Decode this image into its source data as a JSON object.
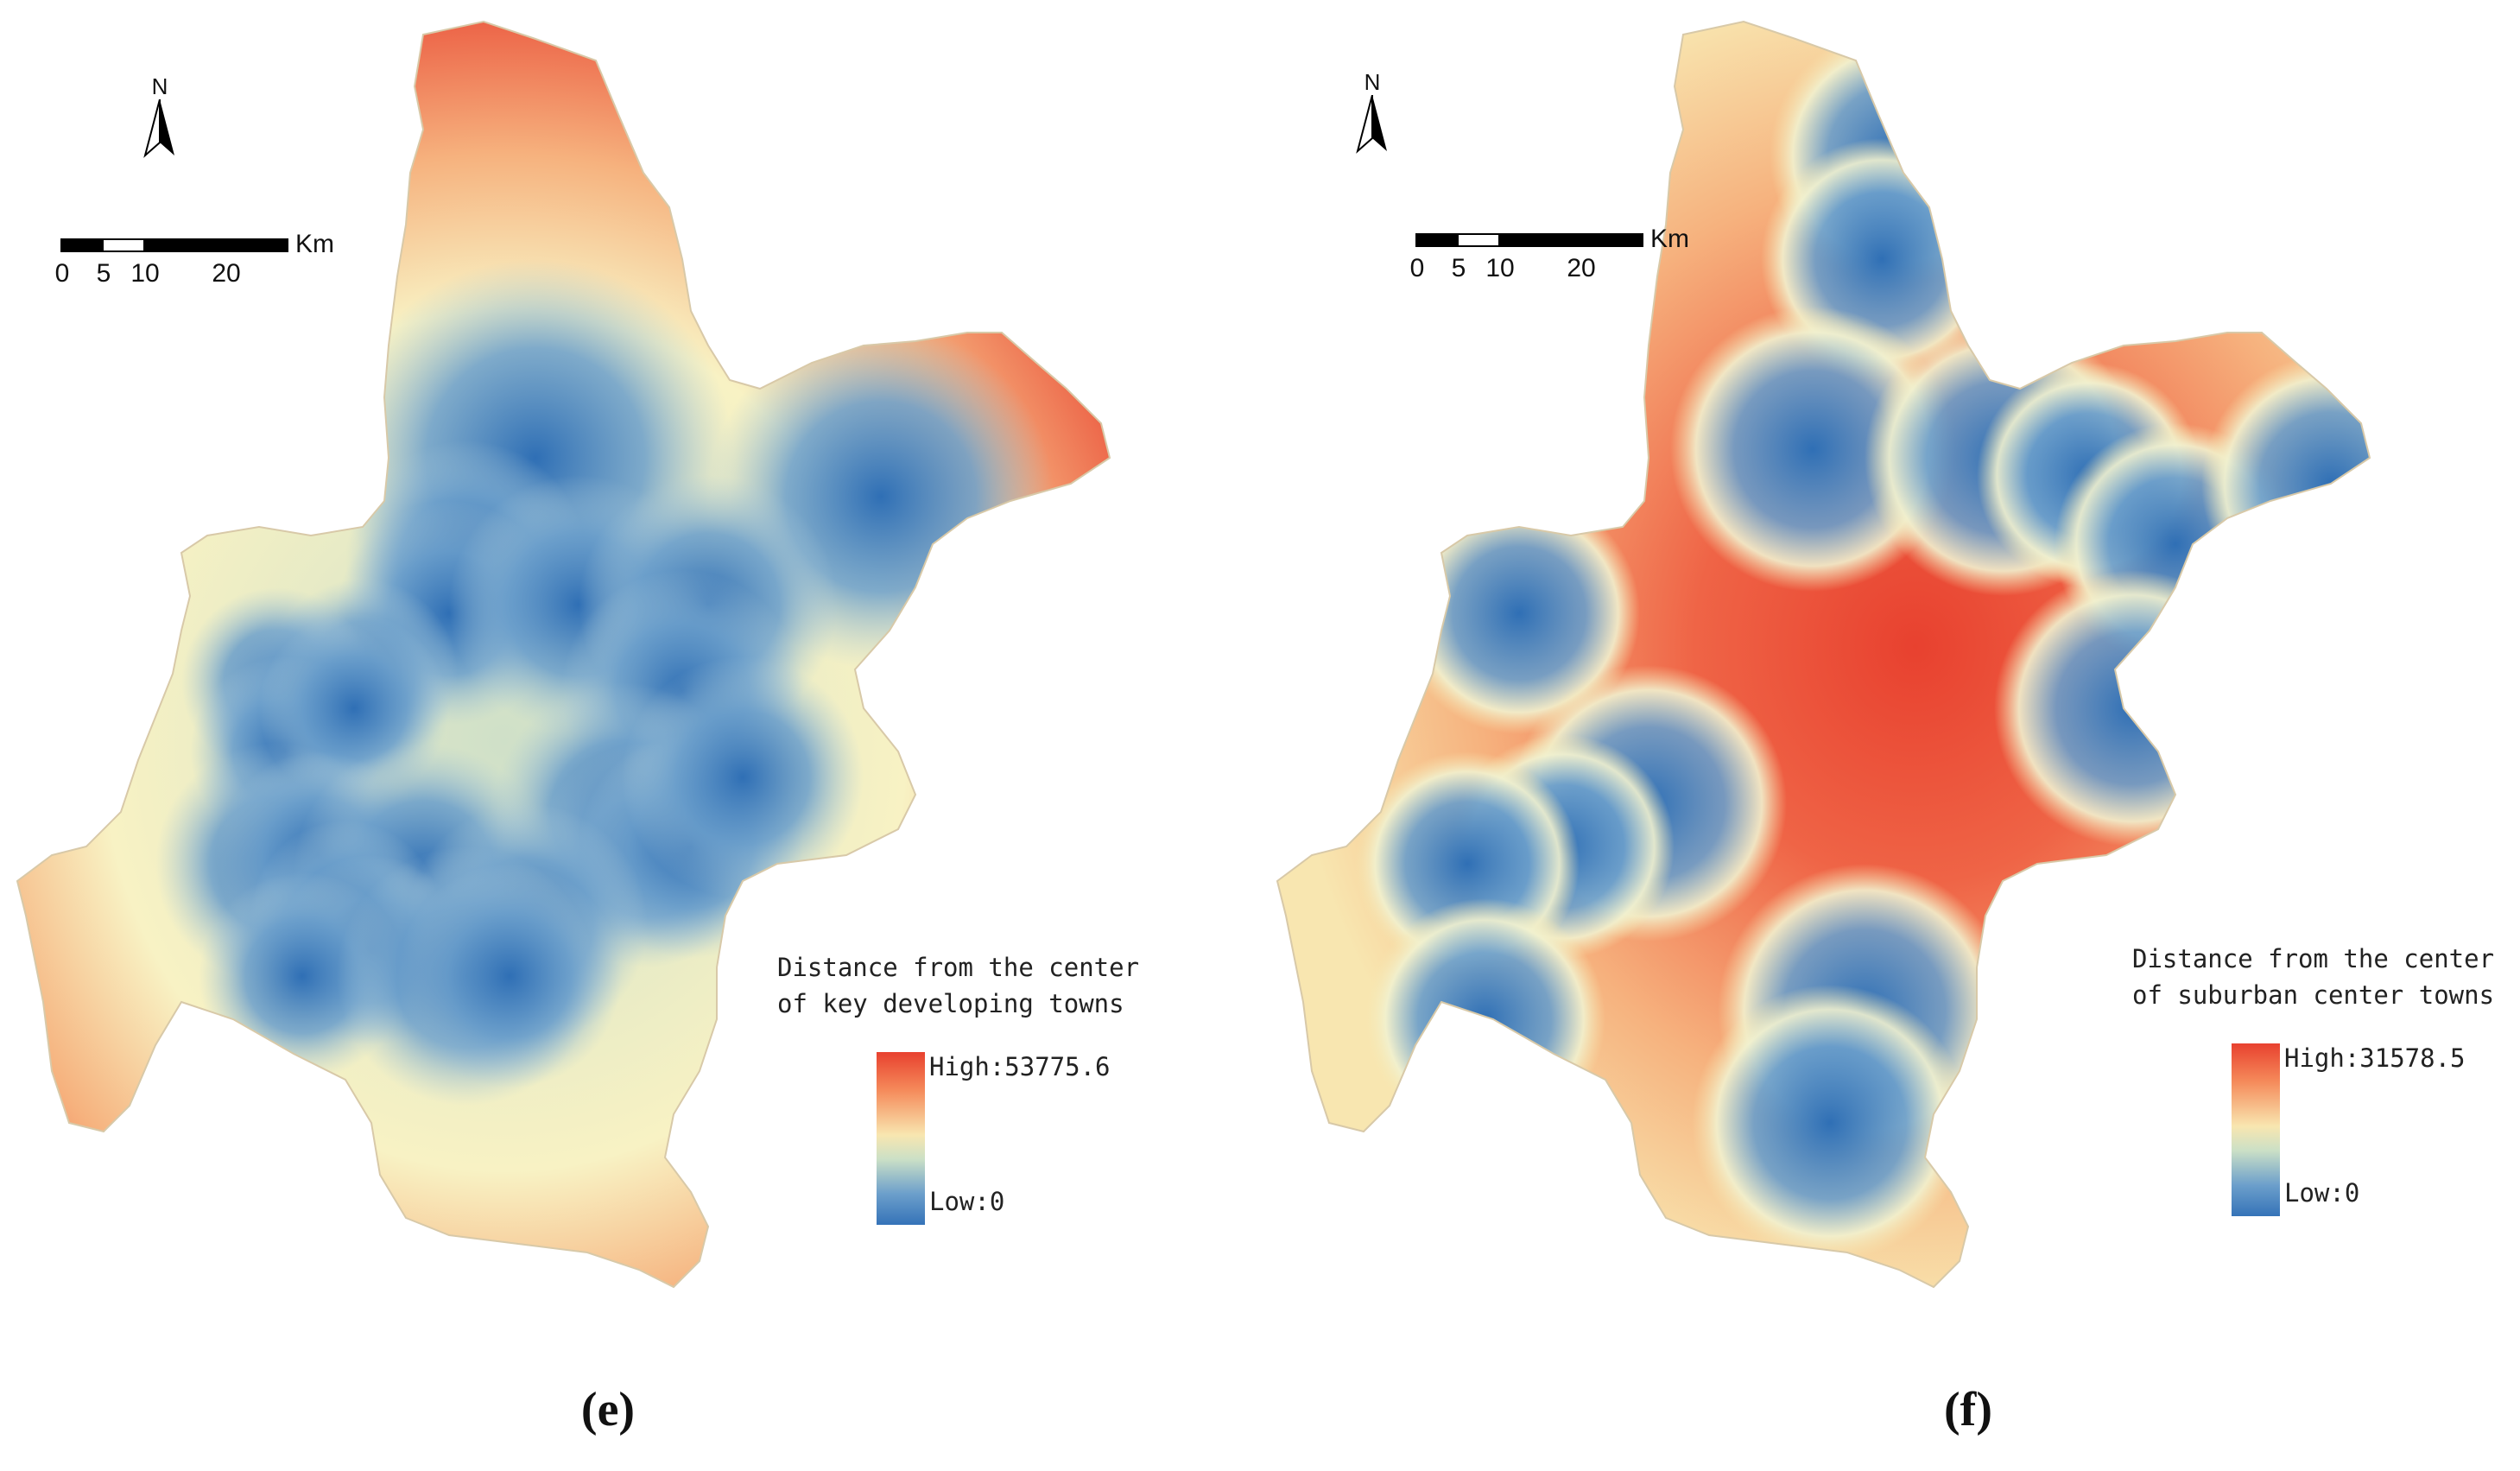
{
  "panels": [
    {
      "id": "e",
      "caption": "(e)",
      "north_label": "N",
      "scale": {
        "unit": "Km",
        "ticks": [
          "0",
          "5",
          "10",
          "20"
        ]
      },
      "legend": {
        "title_line1": "Distance from the center",
        "title_line2": "of key developing towns",
        "high_label": "High:53775.6",
        "low_label": "Low:0",
        "high_value": 53775.6,
        "low_value": 0
      },
      "colors": {
        "high": "#e8412f",
        "mid": "#f8f2c4",
        "low": "#3573b8"
      },
      "towns_count": 25
    },
    {
      "id": "f",
      "caption": "(f)",
      "north_label": "N",
      "scale": {
        "unit": "Km",
        "ticks": [
          "0",
          "5",
          "10",
          "20"
        ]
      },
      "legend": {
        "title_line1": "Distance from the center",
        "title_line2": "of suburban center towns",
        "high_label": "High:31578.5",
        "low_label": "Low:0",
        "high_value": 31578.5,
        "low_value": 0
      },
      "colors": {
        "high": "#e8412f",
        "mid": "#f8f2c4",
        "low": "#3573b8"
      },
      "towns_count": 15
    }
  ]
}
